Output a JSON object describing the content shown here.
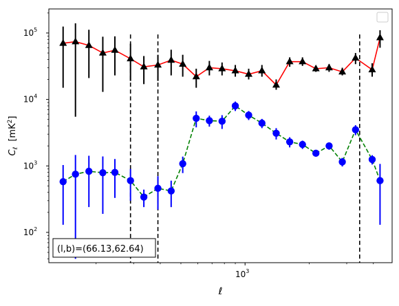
{
  "chart_data": {
    "type": "scatter",
    "xscale": "log",
    "yscale": "log",
    "xlim": [
      120,
      4900
    ],
    "ylim": [
      35,
      230000
    ],
    "xlabel": "ℓ",
    "ylabel_main": "C",
    "ylabel_sub": "ℓ",
    "ylabel_unit_prefix": "[mK",
    "ylabel_unit_sup": "2",
    "ylabel_unit_suffix": "]",
    "x_tick_labels": [
      {
        "value": 1000,
        "base": "10",
        "exp": "3"
      }
    ],
    "y_tick_labels": [
      {
        "value": 100,
        "base": "10",
        "exp": "2"
      },
      {
        "value": 1000,
        "base": "10",
        "exp": "3"
      },
      {
        "value": 10000,
        "base": "10",
        "exp": "4"
      },
      {
        "value": 100000,
        "base": "10",
        "exp": "5"
      }
    ],
    "annotation": "(l,b)=(66.13,62.64)",
    "vlines": [
      290,
      390,
      3450
    ],
    "grid": false,
    "legend_position": "top-right",
    "series": [
      {
        "style": "black-triangles-red-line",
        "marker_color": "#000000",
        "line_color": "#ff0000",
        "line_style": "solid",
        "marker": "triangle",
        "points": [
          {
            "x": 140,
            "y": 70000,
            "lo": 15000,
            "hi": 125000
          },
          {
            "x": 160,
            "y": 74000,
            "lo": 5500,
            "hi": 140000
          },
          {
            "x": 185,
            "y": 65000,
            "lo": 21000,
            "hi": 112000
          },
          {
            "x": 215,
            "y": 50000,
            "lo": 13000,
            "hi": 88000
          },
          {
            "x": 245,
            "y": 55000,
            "lo": 23000,
            "hi": 89000
          },
          {
            "x": 290,
            "y": 41000,
            "lo": 19000,
            "hi": 69000
          },
          {
            "x": 335,
            "y": 31000,
            "lo": 17000,
            "hi": 45000
          },
          {
            "x": 390,
            "y": 33000,
            "lo": 19000,
            "hi": 47000
          },
          {
            "x": 450,
            "y": 39000,
            "lo": 23000,
            "hi": 56000
          },
          {
            "x": 510,
            "y": 34000,
            "lo": 22000,
            "hi": 47000
          },
          {
            "x": 590,
            "y": 22000,
            "lo": 15000,
            "hi": 29000
          },
          {
            "x": 680,
            "y": 30000,
            "lo": 23000,
            "hi": 38000
          },
          {
            "x": 780,
            "y": 29000,
            "lo": 23000,
            "hi": 36000
          },
          {
            "x": 900,
            "y": 27000,
            "lo": 22000,
            "hi": 33000
          },
          {
            "x": 1040,
            "y": 24000,
            "lo": 20000,
            "hi": 29000
          },
          {
            "x": 1200,
            "y": 27000,
            "lo": 22000,
            "hi": 33000
          },
          {
            "x": 1400,
            "y": 16500,
            "lo": 14000,
            "hi": 20000
          },
          {
            "x": 1620,
            "y": 37000,
            "lo": 31000,
            "hi": 43000
          },
          {
            "x": 1860,
            "y": 37000,
            "lo": 32000,
            "hi": 43000
          },
          {
            "x": 2150,
            "y": 29000,
            "lo": 26000,
            "hi": 32000
          },
          {
            "x": 2480,
            "y": 30000,
            "lo": 26000,
            "hi": 34000
          },
          {
            "x": 2860,
            "y": 26000,
            "lo": 23000,
            "hi": 30000
          },
          {
            "x": 3300,
            "y": 42000,
            "lo": 34000,
            "hi": 50000
          },
          {
            "x": 3950,
            "y": 28000,
            "lo": 22000,
            "hi": 35000
          },
          {
            "x": 4300,
            "y": 85000,
            "lo": 60000,
            "hi": 110000
          }
        ]
      },
      {
        "style": "blue-circles-green-dashed",
        "marker_color": "#0000ff",
        "line_color": "#008000",
        "line_style": "dashed",
        "marker": "circle",
        "points": [
          {
            "x": 140,
            "y": 580,
            "lo": 130,
            "hi": 1030
          },
          {
            "x": 160,
            "y": 750,
            "lo": 40,
            "hi": 1460
          },
          {
            "x": 185,
            "y": 830,
            "lo": 240,
            "hi": 1420
          },
          {
            "x": 215,
            "y": 790,
            "lo": 190,
            "hi": 1390
          },
          {
            "x": 245,
            "y": 800,
            "lo": 330,
            "hi": 1270
          },
          {
            "x": 290,
            "y": 600,
            "lo": 300,
            "hi": 900
          },
          {
            "x": 335,
            "y": 340,
            "lo": 240,
            "hi": 440
          },
          {
            "x": 390,
            "y": 460,
            "lo": 220,
            "hi": 700
          },
          {
            "x": 450,
            "y": 420,
            "lo": 240,
            "hi": 600
          },
          {
            "x": 510,
            "y": 1080,
            "lo": 780,
            "hi": 1380
          },
          {
            "x": 590,
            "y": 5200,
            "lo": 3800,
            "hi": 6600
          },
          {
            "x": 680,
            "y": 4800,
            "lo": 3900,
            "hi": 5700
          },
          {
            "x": 780,
            "y": 4700,
            "lo": 3600,
            "hi": 5800
          },
          {
            "x": 900,
            "y": 8000,
            "lo": 6700,
            "hi": 9300
          },
          {
            "x": 1040,
            "y": 5800,
            "lo": 4900,
            "hi": 6700
          },
          {
            "x": 1200,
            "y": 4400,
            "lo": 3700,
            "hi": 5100
          },
          {
            "x": 1400,
            "y": 3100,
            "lo": 2500,
            "hi": 3700
          },
          {
            "x": 1620,
            "y": 2300,
            "lo": 1900,
            "hi": 2700
          },
          {
            "x": 1860,
            "y": 2100,
            "lo": 1800,
            "hi": 2400
          },
          {
            "x": 2150,
            "y": 1550,
            "lo": 1400,
            "hi": 1700
          },
          {
            "x": 2480,
            "y": 2000,
            "lo": 1750,
            "hi": 2250
          },
          {
            "x": 2860,
            "y": 1150,
            "lo": 980,
            "hi": 1320
          },
          {
            "x": 3300,
            "y": 3500,
            "lo": 2900,
            "hi": 4100
          },
          {
            "x": 3950,
            "y": 1250,
            "lo": 1050,
            "hi": 1450
          },
          {
            "x": 4300,
            "y": 600,
            "lo": 130,
            "hi": 1070
          }
        ]
      }
    ]
  }
}
